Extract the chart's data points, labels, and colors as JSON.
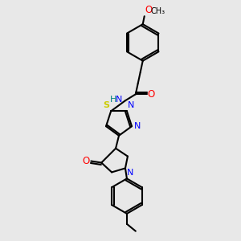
{
  "background_color": "#e8e8e8",
  "bond_color": "#000000",
  "atom_colors": {
    "N": "#0000ff",
    "O": "#ff0000",
    "S": "#cccc00",
    "H": "#008080",
    "C": "#000000"
  },
  "figsize": [
    3.0,
    3.0
  ],
  "dpi": 100
}
